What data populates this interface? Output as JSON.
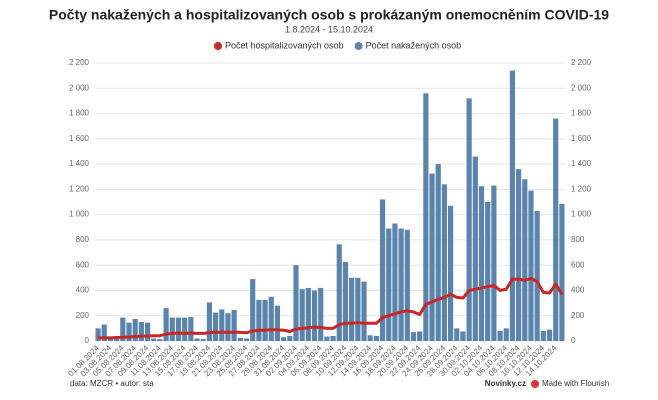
{
  "chart_data": {
    "type": "bar",
    "title": "Počty nakažených a hospitalizovaných osob s prokázaným onemocněním COVID-19",
    "subtitle": "1.8.2024 - 15.10.2024",
    "categories": [
      "01.08.2024",
      null,
      "03.08.2024",
      null,
      "05.08.2024",
      null,
      "07.08.2024",
      null,
      "09.08.2024",
      null,
      "11.08.2024",
      null,
      "13.08.2024",
      null,
      "15.08.2024",
      null,
      "17.08.2024",
      null,
      "19.08.2024",
      null,
      "21.08.2024",
      null,
      "23.08.2024",
      null,
      "25.08.2024",
      null,
      "27.08.2024",
      null,
      "29.08.2024",
      null,
      "31.08.2024",
      null,
      "02.09.2024",
      null,
      "04.09.2024",
      null,
      "06.09.2024",
      null,
      "08.09.2024",
      null,
      "10.09.2024",
      null,
      "12.09.2024",
      null,
      "14.09.2024",
      null,
      "16.09.2024",
      null,
      "18.09.2024",
      null,
      "20.09.2024",
      null,
      "22.09.2024",
      null,
      "24.09.2024",
      null,
      "26.09.2024",
      null,
      "28.09.2024",
      null,
      "30.09.2024",
      null,
      "02.10.2024",
      null,
      "04.10.2024",
      null,
      "06.10.2024",
      null,
      "08.10.2024",
      null,
      "10.10.2024",
      null,
      "12.10.2024",
      null,
      "14.10.2024",
      null
    ],
    "series": [
      {
        "name": "Počet hospitalizovaných osob",
        "type": "line",
        "color": "#c62828",
        "values": [
          25,
          25,
          25,
          28,
          30,
          32,
          35,
          38,
          40,
          42,
          42,
          55,
          60,
          62,
          60,
          62,
          60,
          60,
          65,
          68,
          70,
          68,
          70,
          68,
          65,
          80,
          85,
          85,
          90,
          88,
          85,
          75,
          95,
          100,
          105,
          110,
          108,
          100,
          100,
          130,
          140,
          140,
          145,
          140,
          140,
          140,
          185,
          200,
          215,
          230,
          240,
          230,
          210,
          290,
          310,
          330,
          345,
          370,
          345,
          340,
          400,
          410,
          420,
          430,
          440,
          400,
          410,
          490,
          490,
          480,
          495,
          470,
          385,
          380,
          450,
          370
        ]
      },
      {
        "name": "Počet nakažených osob",
        "type": "bar",
        "color": "#5b84ad",
        "values": [
          100,
          130,
          30,
          20,
          185,
          145,
          175,
          150,
          145,
          20,
          15,
          260,
          185,
          185,
          185,
          190,
          20,
          15,
          305,
          225,
          250,
          220,
          245,
          25,
          20,
          490,
          325,
          325,
          350,
          280,
          30,
          40,
          600,
          410,
          420,
          400,
          420,
          35,
          40,
          765,
          625,
          500,
          500,
          470,
          45,
          40,
          1120,
          890,
          930,
          890,
          880,
          70,
          75,
          1960,
          1325,
          1400,
          1240,
          1070,
          100,
          75,
          1920,
          1460,
          1225,
          1100,
          1230,
          80,
          100,
          2140,
          1360,
          1280,
          1190,
          1030,
          80,
          90,
          1760,
          1085
        ]
      }
    ],
    "ylim": [
      0,
      2200
    ],
    "yticks": [
      0,
      200,
      400,
      600,
      800,
      {
        "value": 1000,
        "label": "1 000"
      },
      {
        "value": 1200,
        "label": "1 200"
      },
      {
        "value": 1400,
        "label": "1 400"
      },
      {
        "value": 1600,
        "label": "1 600"
      },
      {
        "value": 1800,
        "label": "1 800"
      },
      {
        "value": 2000,
        "label": "2 000"
      },
      {
        "value": 2200,
        "label": "2 200"
      }
    ],
    "grid": true,
    "source": "data: MZCR • autor: sta",
    "brand": "Novinky.cz",
    "credit": "Made with Flourish"
  }
}
